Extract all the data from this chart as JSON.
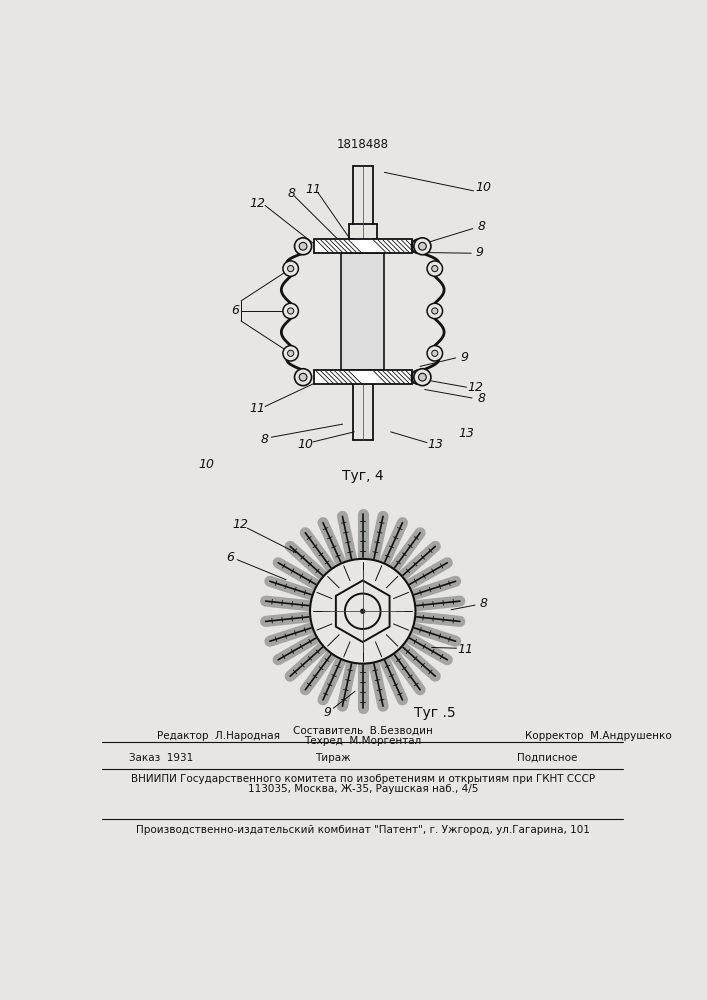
{
  "patent_number": "1818488",
  "fig4_caption": "Τуг, 4",
  "fig5_caption": "Τуг .5",
  "bg_color": "#e8e6e2",
  "lc": "#111111",
  "editor": "Редактор  Л.Народная",
  "composer": "Составитель  В.Безводин",
  "techred": "Техред  М.Моргентал",
  "corrector": "Корректор  М.Андрушенко",
  "zakaz": "Заказ  1931",
  "tiraj": "Тираж",
  "podpisnoe": "Подписное",
  "vniipki": "ВНИИПИ Государственного комитета по изобретениям и открытиям при ГКНТ СССР",
  "address": "113035, Москва, Ж-35, Раушская наб., 4/5",
  "publisher": "Производственно-издательский комбинат \"Патент\", г. Ужгород, ул.Гагарина, 101"
}
